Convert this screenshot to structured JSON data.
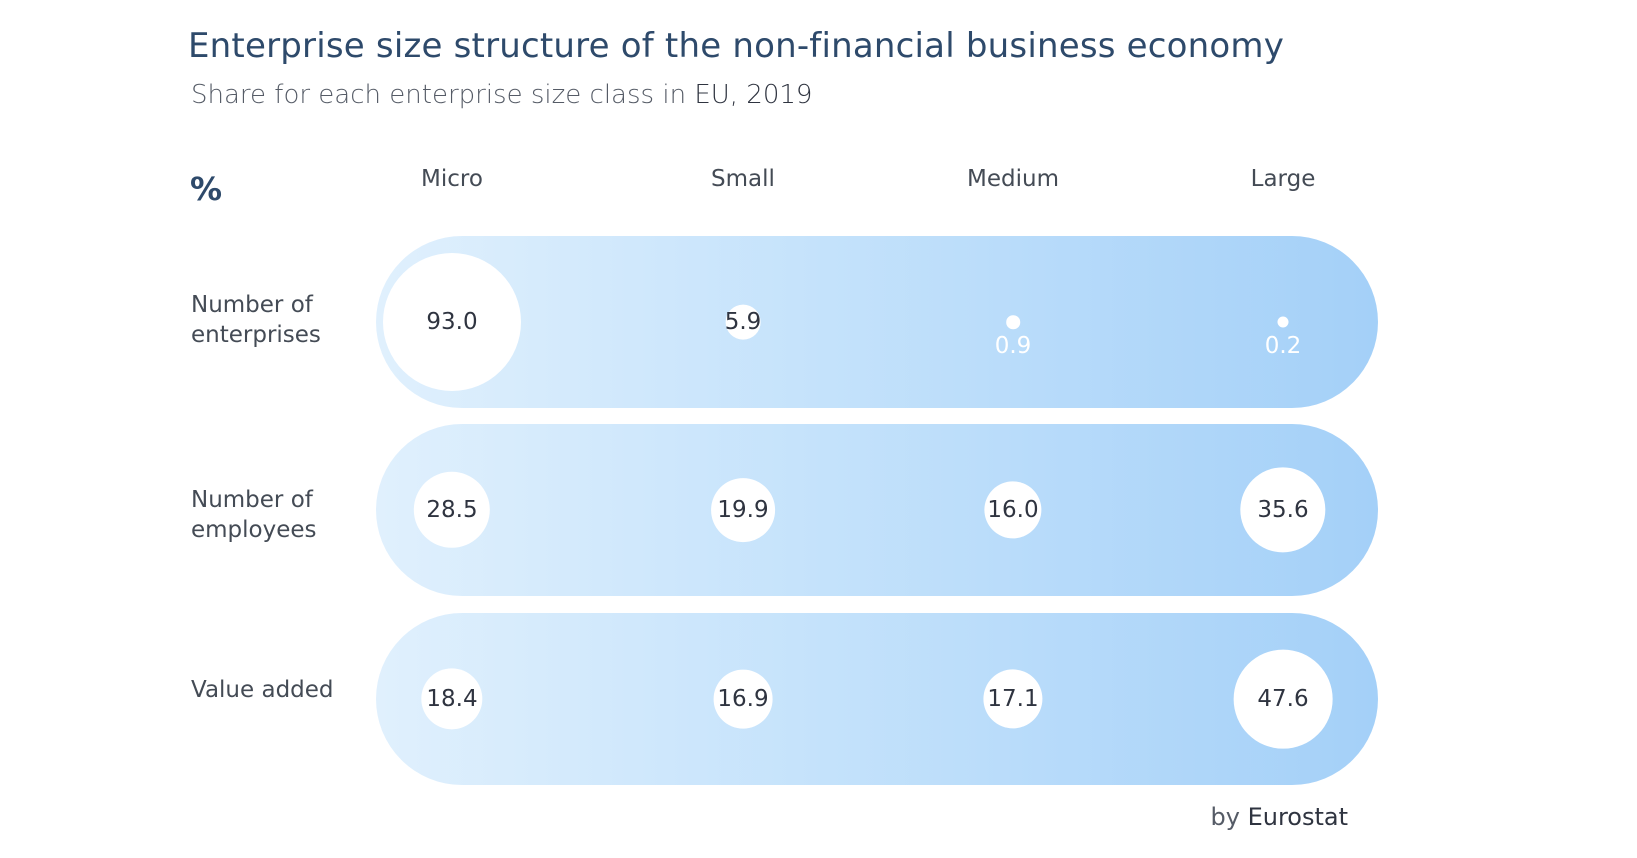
{
  "title": "Enterprise size structure of the non-financial business economy",
  "subtitle_prefix": "Share for each enterprise size class in ",
  "subtitle_highlight": "EU, 2019",
  "unit": "%",
  "source_prefix": "by ",
  "source_highlight": "Eurostat",
  "colors": {
    "title": "#2e4a6b",
    "pill_start": "#e0f0fd",
    "pill_end": "#a4d0f8",
    "bubble": "#ffffff"
  },
  "chart_data": {
    "type": "bubble-table",
    "title": "Enterprise size structure of the non-financial business economy",
    "subtitle": "Share for each enterprise size class in EU, 2019",
    "unit": "%",
    "categories": [
      "Micro",
      "Small",
      "Medium",
      "Large"
    ],
    "series": [
      {
        "name": "Number of enterprises",
        "label_lines": [
          "Number of",
          "enterprises"
        ],
        "values": [
          93.0,
          5.9,
          0.9,
          0.2
        ]
      },
      {
        "name": "Number of employees",
        "label_lines": [
          "Number of",
          "employees"
        ],
        "values": [
          28.5,
          19.9,
          16.0,
          35.6
        ]
      },
      {
        "name": "Value added",
        "label_lines": [
          "Value added"
        ],
        "values": [
          18.4,
          16.9,
          17.1,
          47.6
        ]
      }
    ]
  }
}
